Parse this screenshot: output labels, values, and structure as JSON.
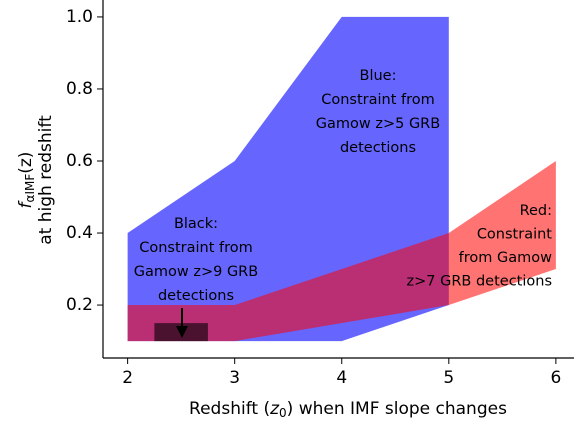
{
  "chart_data": {
    "type": "area",
    "xlabel": {
      "before": "Redshift (",
      "symbol": "z",
      "subscript": "0",
      "after": ") when IMF slope changes"
    },
    "ylabel": {
      "symbol": "f",
      "subscript": "αIMF",
      "argument": "(z)",
      "line2": "at high redshift"
    },
    "xlim": [
      1.77,
      6.16
    ],
    "ylim": [
      0.053,
      1.047
    ],
    "xticks": [
      2,
      3,
      4,
      5,
      6
    ],
    "yticks": [
      0.2,
      0.4,
      0.6,
      0.8,
      {
        "value": 1.0,
        "label": "1.0"
      }
    ],
    "series": [
      {
        "name": "Blue",
        "color": "#0000ff",
        "opacity": 0.6,
        "x": [
          2,
          2,
          3,
          4,
          5,
          5,
          4
        ],
        "values": [
          0.1,
          0.4,
          0.6,
          1.0,
          1.0,
          0.2,
          0.1
        ]
      },
      {
        "name": "Red",
        "color": "#ff0000",
        "opacity": 0.55,
        "x": [
          2,
          3,
          5,
          6,
          6,
          5,
          3,
          2
        ],
        "values": [
          0.2,
          0.2,
          0.4,
          0.6,
          0.3,
          0.2,
          0.1,
          0.1
        ]
      },
      {
        "name": "Black",
        "color": "#000000",
        "opacity": 0.6,
        "x": [
          2.25,
          2.25,
          2.75,
          2.75
        ],
        "values": [
          0.1,
          0.15,
          0.15,
          0.1
        ]
      }
    ],
    "annotations": [
      {
        "lines": [
          "Blue:",
          "Constraint from",
          "Gamow z>5 GRB",
          "detections"
        ]
      },
      {
        "lines": [
          "Black:",
          "Constraint from",
          "Gamow z>9 GRB",
          "detections"
        ]
      },
      {
        "lines": [
          "Red:",
          "Constraint",
          "from Gamow",
          "z>7 GRB detections"
        ]
      }
    ]
  }
}
